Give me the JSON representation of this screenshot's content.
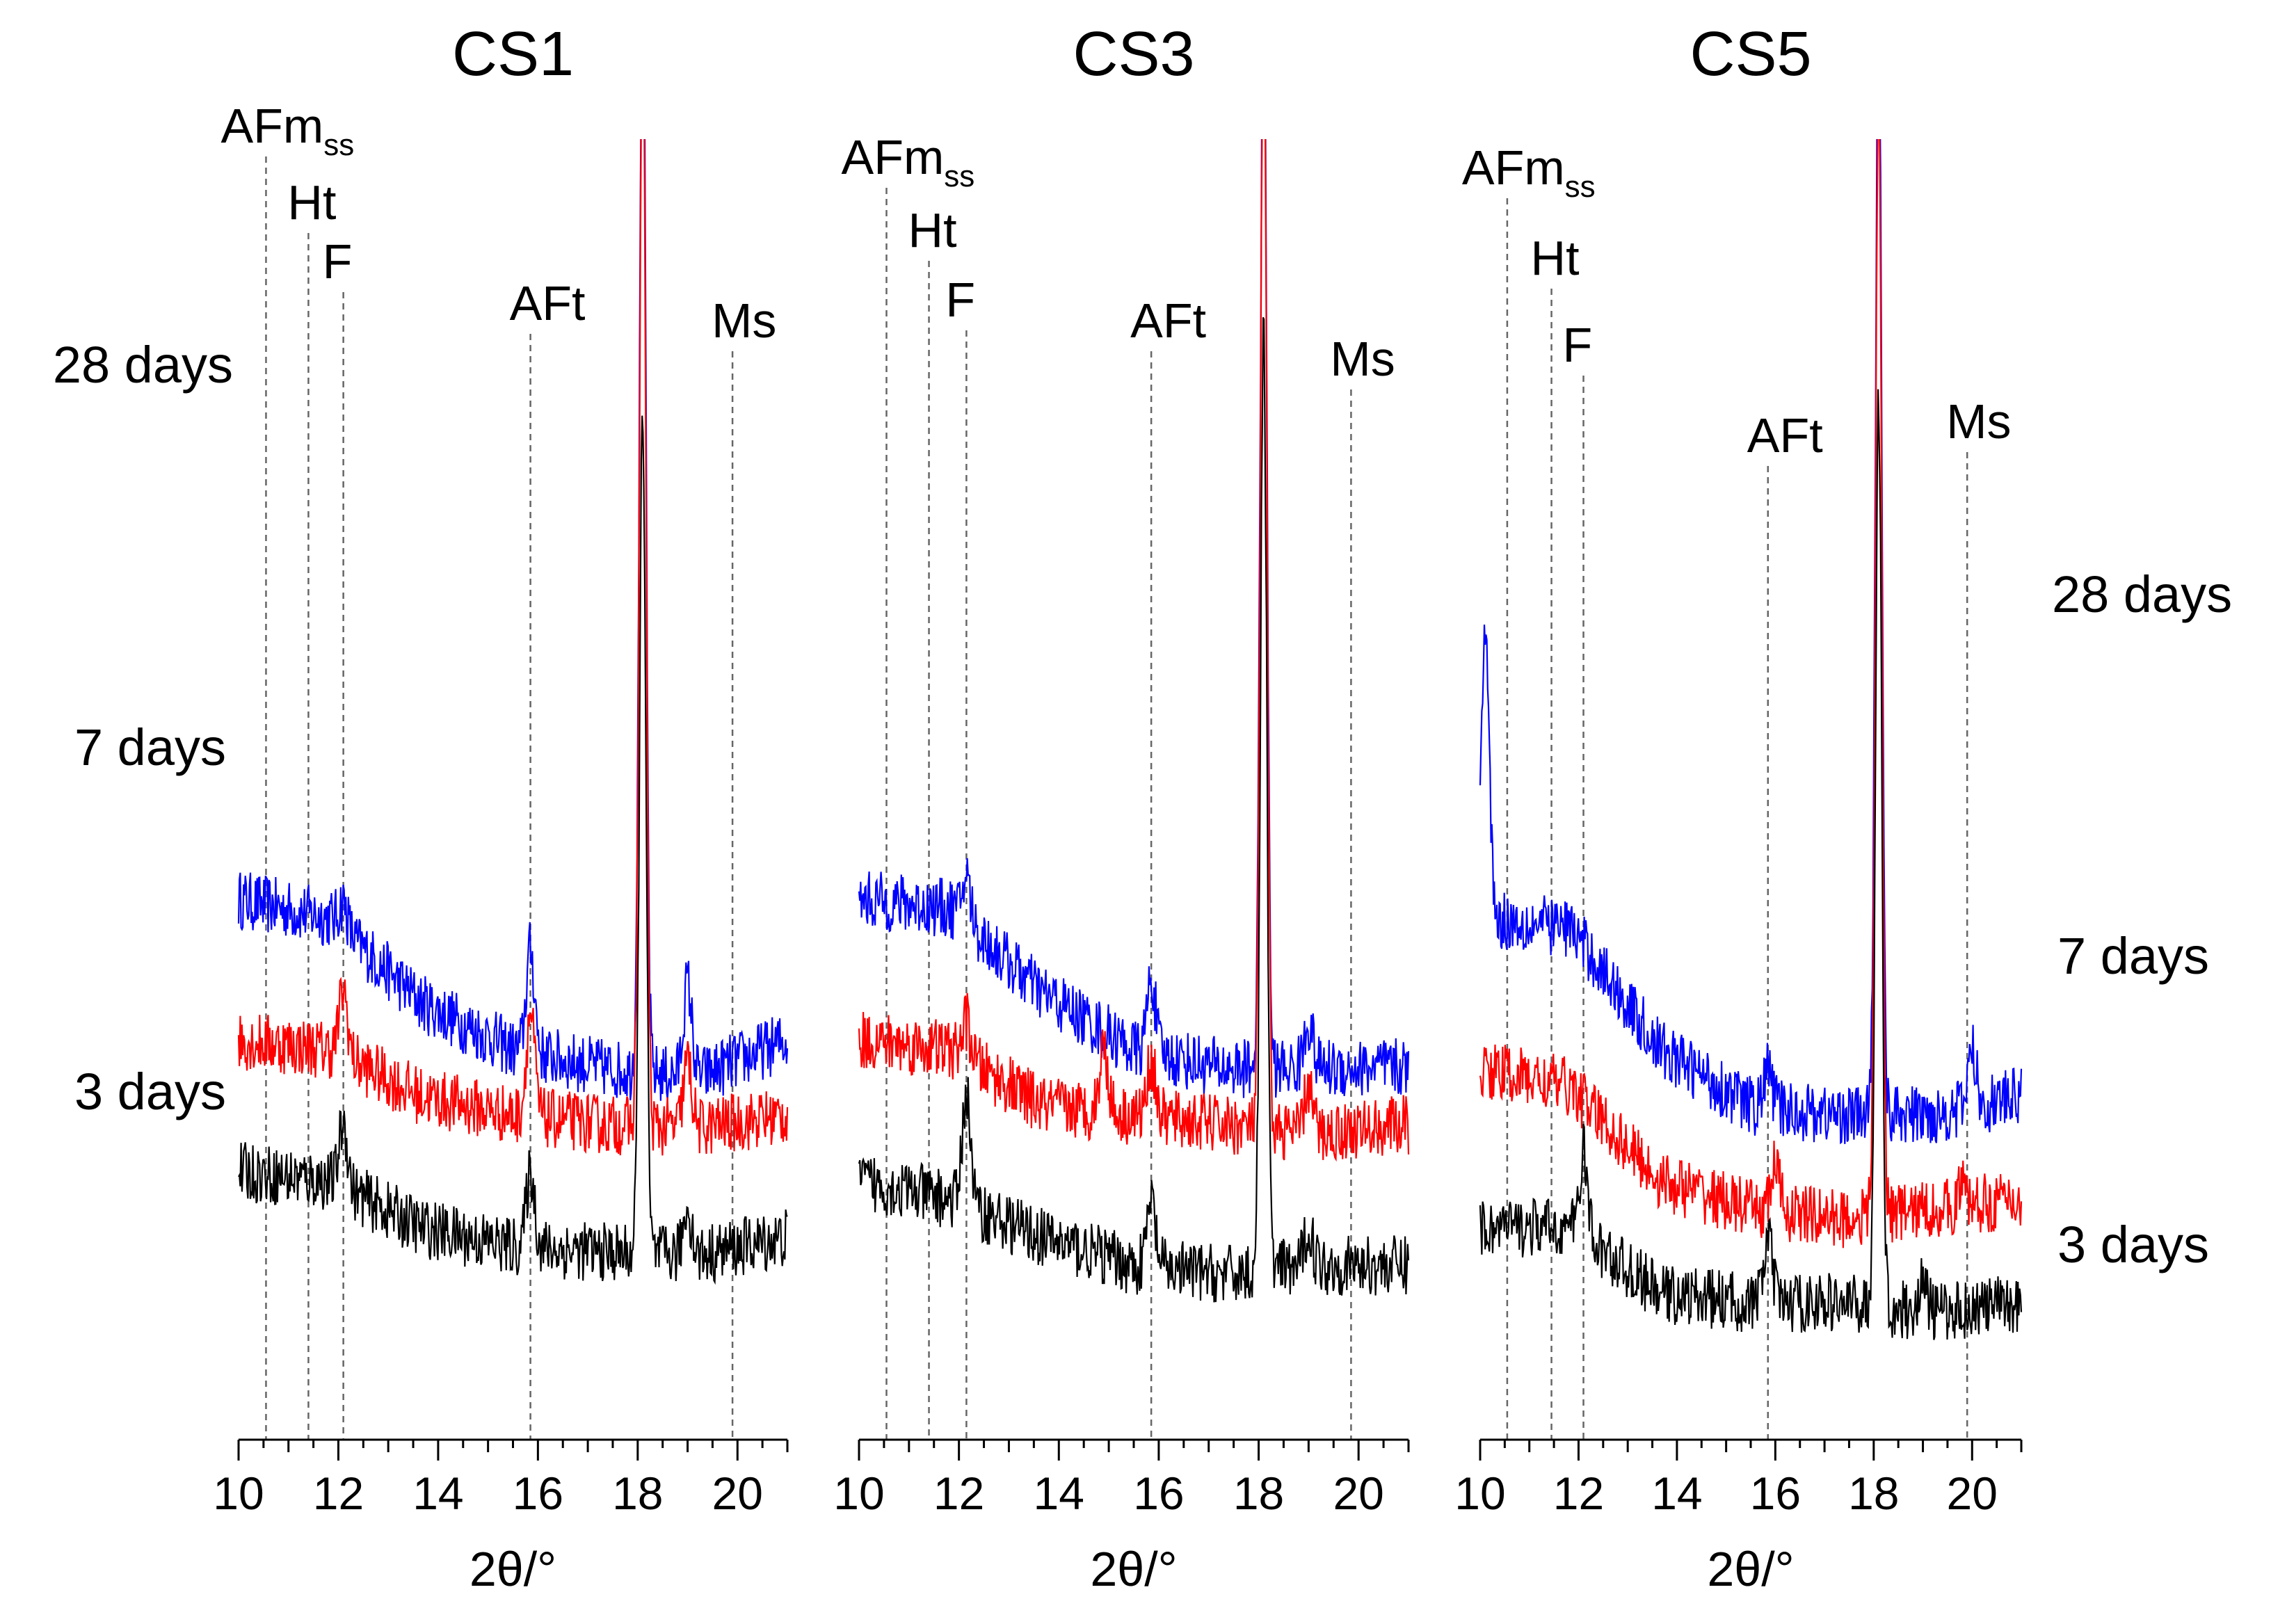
{
  "chart_data": {
    "type": "line",
    "description_free": true,
    "x_label": "2θ/°",
    "x_range": [
      10,
      21
    ],
    "x_ticks": [
      "10",
      "12",
      "14",
      "16",
      "18",
      "20"
    ],
    "age_labels": [
      "28 days",
      "7 days",
      "3 days"
    ],
    "series_colors": {
      "28 days": "#0000ff",
      "7 days": "#ff0000",
      "3 days": "#000000"
    },
    "panels": [
      {
        "title": "CS1",
        "phase_lines": [
          {
            "label": "AFm",
            "sub": "ss",
            "x": 10.55
          },
          {
            "label": "Ht",
            "sub": "",
            "x": 11.4
          },
          {
            "label": "F",
            "sub": "",
            "x": 12.1
          },
          {
            "label": "AFt",
            "sub": "",
            "x": 15.85
          },
          {
            "label": "Ms",
            "sub": "",
            "x": 19.9
          }
        ],
        "series": [
          {
            "name": "28 days",
            "baseline": [
              2.1,
              2.0,
              1.55,
              1.3,
              1.2,
              1.15,
              1.35
            ],
            "peaks": [
              [
                12.1,
                0.15
              ],
              [
                15.85,
                0.55
              ],
              [
                18.1,
                6.0
              ],
              [
                19.0,
                0.5
              ]
            ]
          },
          {
            "name": "7 days",
            "baseline": [
              1.35,
              1.3,
              1.05,
              0.95,
              0.9,
              0.88,
              0.95
            ],
            "peaks": [
              [
                12.1,
                0.35
              ],
              [
                15.85,
                0.55
              ],
              [
                18.1,
                6.0
              ],
              [
                19.0,
                0.35
              ]
            ]
          },
          {
            "name": "3 days",
            "baseline": [
              0.65,
              0.6,
              0.35,
              0.25,
              0.22,
              0.2,
              0.3
            ],
            "peaks": [
              [
                12.1,
                0.35
              ],
              [
                15.85,
                0.4
              ],
              [
                18.1,
                4.5
              ],
              [
                19.0,
                0.25
              ]
            ]
          }
        ]
      },
      {
        "title": "CS3",
        "phase_lines": [
          {
            "label": "AFm",
            "sub": "ss",
            "x": 10.55
          },
          {
            "label": "Ht",
            "sub": "",
            "x": 11.4
          },
          {
            "label": "F",
            "sub": "",
            "x": 12.15
          },
          {
            "label": "AFt",
            "sub": "",
            "x": 15.85
          },
          {
            "label": "Ms",
            "sub": "",
            "x": 19.85
          }
        ],
        "series": [
          {
            "name": "28 days",
            "baseline": [
              2.1,
              2.05,
              1.6,
              1.3,
              1.2,
              1.2,
              1.2
            ],
            "peaks": [
              [
                12.15,
                0.25
              ],
              [
                15.85,
                0.4
              ],
              [
                18.1,
                6.0
              ],
              [
                19.0,
                0.25
              ]
            ]
          },
          {
            "name": "7 days",
            "baseline": [
              1.35,
              1.3,
              1.0,
              0.95,
              0.9,
              0.85,
              0.9
            ],
            "peaks": [
              [
                12.15,
                0.2
              ],
              [
                14.9,
                0.35
              ],
              [
                15.85,
                0.3
              ],
              [
                18.1,
                6.0
              ],
              [
                19.0,
                0.25
              ]
            ]
          },
          {
            "name": "3 days",
            "baseline": [
              0.6,
              0.5,
              0.3,
              0.15,
              0.1,
              0.15,
              0.15
            ],
            "peaks": [
              [
                12.15,
                0.6
              ],
              [
                15.85,
                0.35
              ],
              [
                18.1,
                5.0
              ],
              [
                19.0,
                0.2
              ]
            ]
          }
        ]
      },
      {
        "title": "CS5",
        "phase_lines": [
          {
            "label": "AFm",
            "sub": "ss",
            "x": 10.55
          },
          {
            "label": "Ht",
            "sub": "",
            "x": 11.45
          },
          {
            "label": "F",
            "sub": "",
            "x": 12.1
          },
          {
            "label": "AFt",
            "sub": "",
            "x": 15.85
          },
          {
            "label": "Ms",
            "sub": "",
            "x": 19.9
          }
        ],
        "series": [
          {
            "name": "28 days",
            "baseline": [
              2.0,
              1.95,
              1.3,
              1.0,
              0.95,
              0.95,
              1.05
            ],
            "peaks": [
              [
                10.1,
                1.5
              ],
              [
                15.85,
                0.2
              ],
              [
                18.1,
                6.0
              ],
              [
                20.0,
                0.3
              ]
            ]
          },
          {
            "name": "7 days",
            "baseline": [
              1.2,
              1.1,
              0.6,
              0.45,
              0.4,
              0.45,
              0.5
            ],
            "peaks": [
              [
                16.0,
                0.25
              ],
              [
                18.1,
                6.0
              ],
              [
                19.8,
                0.1
              ]
            ]
          },
          {
            "name": "3 days",
            "baseline": [
              0.35,
              0.35,
              0.0,
              -0.05,
              -0.05,
              -0.1,
              -0.05
            ],
            "peaks": [
              [
                12.1,
                0.45
              ],
              [
                15.85,
                0.35
              ],
              [
                18.1,
                4.8
              ],
              [
                19.0,
                0.15
              ]
            ]
          }
        ]
      }
    ]
  }
}
